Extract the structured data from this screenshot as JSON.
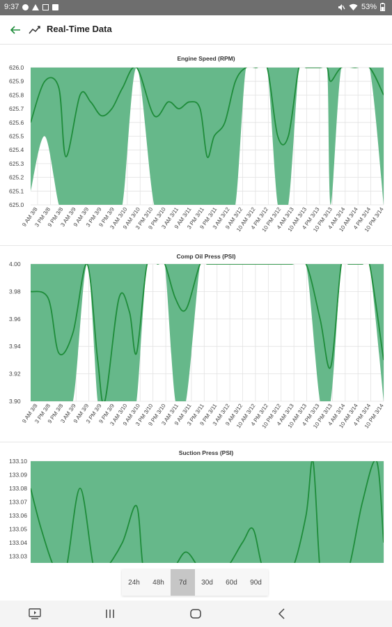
{
  "status_bar": {
    "time": "9:37",
    "battery": "53%",
    "icons": [
      "whatsapp-icon",
      "alert-icon",
      "close-box-icon",
      "image-icon",
      "mute-icon",
      "wifi-icon",
      "battery-icon"
    ]
  },
  "app_bar": {
    "title": "Real-Time Data",
    "back_icon": "arrow-left-icon",
    "title_icon": "trending-line-icon"
  },
  "colors": {
    "line": "#1e8c3a",
    "band": "#66b88a",
    "grid": "#e2e2e2",
    "active_range": "#c6c6c6"
  },
  "x_ticks": [
    "9 AM 3/8",
    "3 PM 3/8",
    "9 PM 3/8",
    "3 AM 3/9",
    "9 AM 3/9",
    "3 PM 3/9",
    "9 PM 3/9",
    "3 AM 3/10",
    "9 AM 3/10",
    "3 PM 3/10",
    "9 PM 3/10",
    "3 AM 3/11",
    "9 AM 3/11",
    "3 PM 3/11",
    "9 PM 3/11",
    "3 AM 3/12",
    "9 AM 3/12",
    "10 AM 3/12",
    "4 PM 3/12",
    "10 PM 3/12",
    "4 AM 3/13",
    "10 AM 3/13",
    "4 PM 3/13",
    "10 PM 3/13",
    "4 AM 3/14",
    "10 AM 3/14",
    "4 PM 3/14",
    "10 PM 3/14"
  ],
  "chart_data": [
    {
      "type": "area",
      "title": "Engine Speed (RPM)",
      "ylim": [
        625.0,
        626.0
      ],
      "y_ticks": [
        "626.0",
        "625.9",
        "625.8",
        "625.7",
        "625.6",
        "625.5",
        "625.4",
        "625.3",
        "625.2",
        "625.1",
        "625.0"
      ],
      "grid": true,
      "x_fraction": [
        0,
        0.04,
        0.08,
        0.1,
        0.14,
        0.17,
        0.2,
        0.23,
        0.26,
        0.3,
        0.35,
        0.39,
        0.42,
        0.45,
        0.48,
        0.5,
        0.52,
        0.55,
        0.58,
        0.61,
        0.64,
        0.67,
        0.7,
        0.73,
        0.76,
        0.78,
        0.81,
        0.82,
        0.84,
        0.85,
        0.88,
        0.92,
        0.96,
        1.0
      ],
      "values": [
        625.6,
        625.9,
        625.85,
        625.35,
        625.8,
        625.75,
        625.65,
        625.7,
        625.85,
        626.0,
        625.65,
        625.75,
        625.7,
        625.75,
        625.7,
        625.35,
        625.5,
        625.6,
        625.9,
        626.0,
        626.0,
        626.0,
        625.5,
        625.5,
        626.0,
        626.0,
        626.0,
        626.0,
        626.0,
        625.9,
        626.0,
        626.0,
        626.0,
        625.8
      ],
      "band_lower": [
        625.1,
        625.5,
        625.0,
        625.0,
        625.0,
        625.0,
        625.0,
        625.0,
        625.0,
        626.0,
        625.0,
        625.0,
        625.0,
        625.0,
        625.0,
        625.0,
        625.0,
        625.0,
        625.0,
        626.0,
        626.0,
        626.0,
        625.0,
        625.0,
        626.0,
        626.0,
        626.0,
        626.0,
        626.0,
        625.0,
        626.0,
        626.0,
        626.0,
        625.0
      ],
      "band_upper": [
        626.0,
        626.0,
        626.0,
        626.0,
        626.0,
        626.0,
        626.0,
        626.0,
        626.0,
        626.0,
        626.0,
        626.0,
        626.0,
        626.0,
        626.0,
        626.0,
        626.0,
        626.0,
        626.0,
        626.0,
        626.0,
        626.0,
        626.0,
        626.0,
        626.0,
        626.0,
        626.0,
        626.0,
        626.0,
        626.0,
        626.0,
        626.0,
        626.0,
        626.0
      ]
    },
    {
      "type": "area",
      "title": "Comp Oil Press (PSI)",
      "ylim": [
        3.9,
        4.0
      ],
      "y_ticks": [
        "4.00",
        "3.98",
        "3.96",
        "3.94",
        "3.92",
        "3.90"
      ],
      "grid": true,
      "x_fraction": [
        0,
        0.05,
        0.08,
        0.12,
        0.16,
        0.19,
        0.21,
        0.25,
        0.28,
        0.3,
        0.33,
        0.36,
        0.38,
        0.41,
        0.44,
        0.48,
        0.5,
        0.52,
        0.56,
        0.6,
        0.64,
        0.67,
        0.7,
        0.74,
        0.78,
        0.82,
        0.85,
        0.88,
        0.9,
        0.92,
        0.94,
        0.96,
        1.0
      ],
      "values": [
        3.98,
        3.975,
        3.935,
        3.95,
        4.0,
        3.93,
        3.9,
        3.975,
        3.965,
        3.935,
        4.0,
        4.0,
        4.0,
        3.975,
        3.967,
        4.0,
        4.0,
        4.0,
        4.0,
        4.0,
        4.0,
        4.0,
        4.0,
        4.0,
        4.0,
        3.96,
        3.925,
        4.0,
        4.0,
        4.0,
        4.0,
        4.0,
        3.93
      ],
      "band_lower": [
        3.9,
        3.9,
        3.9,
        3.9,
        4.0,
        3.9,
        3.9,
        3.9,
        3.9,
        3.9,
        4.0,
        4.0,
        4.0,
        3.9,
        3.9,
        4.0,
        4.0,
        4.0,
        4.0,
        4.0,
        4.0,
        4.0,
        4.0,
        4.0,
        4.0,
        3.9,
        3.9,
        4.0,
        4.0,
        4.0,
        4.0,
        4.0,
        3.9
      ],
      "band_upper": [
        4.0,
        4.0,
        4.0,
        4.0,
        4.0,
        4.0,
        4.0,
        4.0,
        4.0,
        4.0,
        4.0,
        4.0,
        4.0,
        4.0,
        4.0,
        4.0,
        4.0,
        4.0,
        4.0,
        4.0,
        4.0,
        4.0,
        4.0,
        4.0,
        4.0,
        4.0,
        4.0,
        4.0,
        4.0,
        4.0,
        4.0,
        4.0,
        4.0
      ]
    },
    {
      "type": "area",
      "title": "Suction Press (PSI)",
      "ylim": [
        133.025,
        133.1
      ],
      "y_ticks": [
        "133.10",
        "133.09",
        "133.08",
        "133.07",
        "133.06",
        "133.05",
        "133.04",
        "133.03"
      ],
      "grid": true,
      "x_fraction": [
        0,
        0.03,
        0.07,
        0.1,
        0.14,
        0.18,
        0.21,
        0.26,
        0.3,
        0.32,
        0.35,
        0.4,
        0.44,
        0.48,
        0.5,
        0.55,
        0.6,
        0.63,
        0.66,
        0.7,
        0.74,
        0.78,
        0.8,
        0.82,
        0.84,
        0.87,
        0.9,
        0.94,
        0.98,
        1.0
      ],
      "values": [
        133.08,
        133.05,
        133.02,
        133.02,
        133.08,
        133.02,
        133.02,
        133.04,
        133.067,
        133.02,
        133.02,
        133.02,
        133.033,
        133.02,
        133.02,
        133.02,
        133.04,
        133.05,
        133.02,
        133.02,
        133.02,
        133.06,
        133.1,
        133.02,
        133.02,
        133.02,
        133.02,
        133.07,
        133.1,
        133.04
      ],
      "band_lower": [
        133.0,
        133.0,
        133.0,
        133.0,
        133.0,
        133.0,
        133.0,
        133.0,
        133.0,
        133.0,
        133.0,
        133.0,
        133.0,
        133.0,
        133.0,
        133.0,
        133.0,
        133.0,
        133.0,
        133.0,
        133.0,
        133.0,
        133.0,
        133.0,
        133.0,
        133.0,
        133.0,
        133.0,
        133.0,
        133.0
      ],
      "band_upper": [
        133.1,
        133.1,
        133.1,
        133.1,
        133.1,
        133.1,
        133.1,
        133.1,
        133.1,
        133.1,
        133.1,
        133.1,
        133.1,
        133.1,
        133.1,
        133.1,
        133.1,
        133.1,
        133.1,
        133.1,
        133.1,
        133.1,
        133.1,
        133.1,
        133.1,
        133.1,
        133.1,
        133.1,
        133.1,
        133.1
      ]
    }
  ],
  "range_selector": {
    "options": [
      "24h",
      "48h",
      "7d",
      "30d",
      "60d",
      "90d"
    ],
    "selected": "7d"
  },
  "nav_bar": {
    "icons": [
      "screen-icon",
      "recent-apps-icon",
      "home-icon",
      "back-icon"
    ]
  }
}
